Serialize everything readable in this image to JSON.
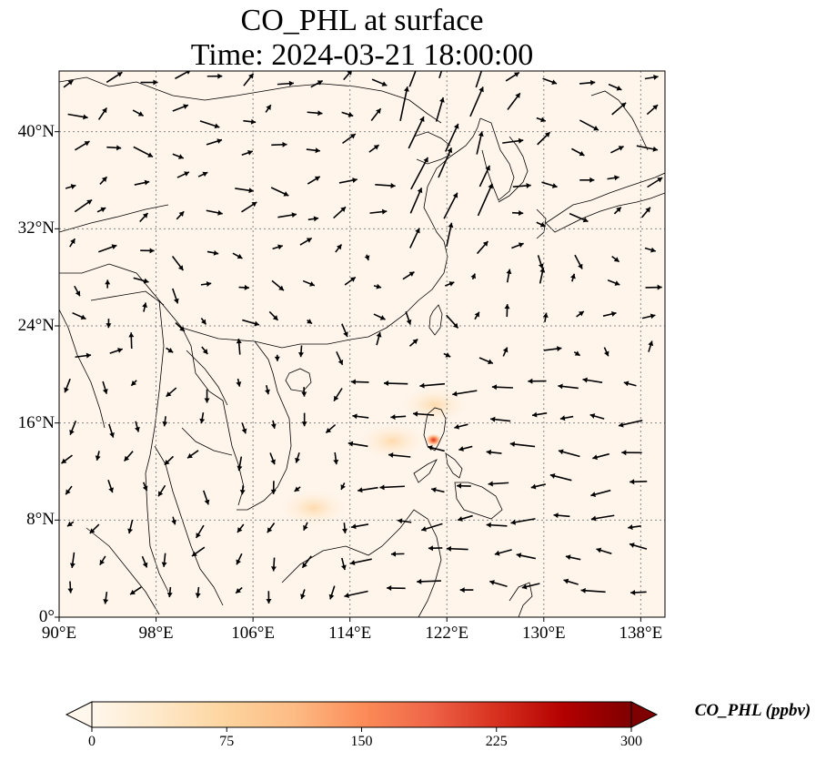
{
  "title": {
    "line1": "CO_PHL at surface",
    "line2": "Time: 2024-03-21 18:00:00"
  },
  "map": {
    "extent": {
      "lon_min": 90,
      "lon_max": 140,
      "lat_min": 0,
      "lat_max": 45
    },
    "lat_ticks": [
      {
        "value": 0,
        "label": "0°"
      },
      {
        "value": 8,
        "label": "8°N"
      },
      {
        "value": 16,
        "label": "16°N"
      },
      {
        "value": 24,
        "label": "24°N"
      },
      {
        "value": 32,
        "label": "32°N"
      },
      {
        "value": 40,
        "label": "40°N"
      }
    ],
    "lon_ticks": [
      {
        "value": 90,
        "label": "90°E"
      },
      {
        "value": 98,
        "label": "98°E"
      },
      {
        "value": 106,
        "label": "106°E"
      },
      {
        "value": 114,
        "label": "114°E"
      },
      {
        "value": 122,
        "label": "122°E"
      },
      {
        "value": 130,
        "label": "130°E"
      },
      {
        "value": 138,
        "label": "138°E"
      }
    ],
    "gridlines": true,
    "background_color": "#fff5eb",
    "hotspot": {
      "lon": 120.9,
      "lat": 14.6,
      "peak_ppbv": 180
    },
    "plume": [
      {
        "lon": 117.5,
        "lat": 14.5
      },
      {
        "lon": 121.0,
        "lat": 17.5
      },
      {
        "lon": 111.0,
        "lat": 9.0
      }
    ],
    "wind_vectors_note": "Wind vectors shown as black arrows"
  },
  "colorbar": {
    "label": "CO_PHL (ppbv)",
    "min": 0,
    "max": 300,
    "ticks": [
      "0",
      "75",
      "150",
      "225",
      "300"
    ],
    "colormap": "OrRd",
    "stops": [
      "#fff7ec",
      "#fee8c8",
      "#fdd49e",
      "#fdbb84",
      "#fc8d59",
      "#ef6548",
      "#d7301f",
      "#b30000",
      "#7f0000"
    ],
    "extend": "both"
  }
}
